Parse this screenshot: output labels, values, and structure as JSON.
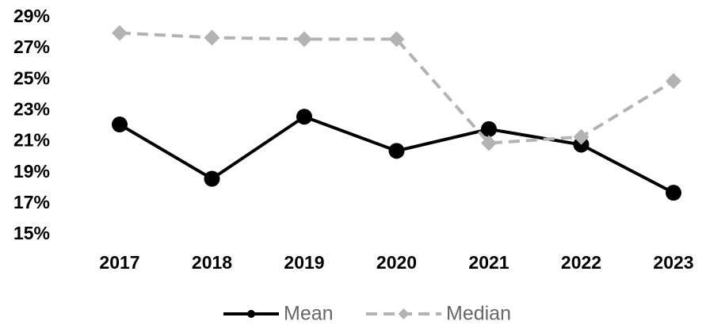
{
  "chart_data": {
    "type": "line",
    "categories": [
      "2017",
      "2018",
      "2019",
      "2020",
      "2021",
      "2022",
      "2023"
    ],
    "series": [
      {
        "name": "Mean",
        "color": "#000000",
        "marker": "circle",
        "dashed": false,
        "values": [
          22.1,
          18.6,
          22.6,
          20.4,
          21.8,
          20.8,
          17.7
        ]
      },
      {
        "name": "Median",
        "color": "#b3b3b3",
        "marker": "diamond",
        "dashed": true,
        "values": [
          28.0,
          27.7,
          27.6,
          27.6,
          20.9,
          21.3,
          24.9
        ]
      }
    ],
    "ylim": [
      15,
      29
    ],
    "yticks": [
      {
        "value": 15,
        "label": "15%"
      },
      {
        "value": 17,
        "label": "17%"
      },
      {
        "value": 19,
        "label": "19%"
      },
      {
        "value": 21,
        "label": "21%"
      },
      {
        "value": 23,
        "label": "23%"
      },
      {
        "value": 25,
        "label": "25%"
      },
      {
        "value": 27,
        "label": "27%"
      },
      {
        "value": 29,
        "label": "29%"
      }
    ],
    "grid": false,
    "legend": "bottom"
  }
}
